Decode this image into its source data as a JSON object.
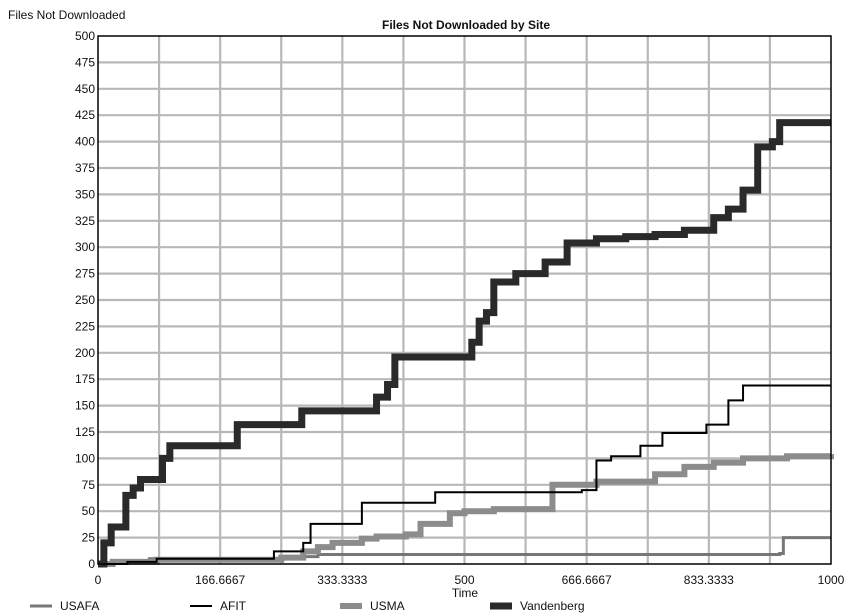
{
  "chart_data": {
    "type": "line",
    "title": "Files Not Downloaded by Site",
    "ylabel": "Files Not Downloaded",
    "xlabel": "Time",
    "xlim": [
      0,
      1000
    ],
    "ylim": [
      0,
      500
    ],
    "x_ticks": [
      0,
      166.6667,
      333.3333,
      500,
      666.6667,
      833.3333,
      1000
    ],
    "x_tick_labels": [
      "0",
      "166.6667",
      "333.3333",
      "500",
      "666.6667",
      "833.3333",
      "1000"
    ],
    "x_grid_step": 83.3333,
    "y_ticks": [
      0,
      25,
      50,
      75,
      100,
      125,
      150,
      175,
      200,
      225,
      250,
      275,
      300,
      325,
      350,
      375,
      400,
      425,
      450,
      475,
      500
    ],
    "grid": true,
    "legend_position": "bottom",
    "series": [
      {
        "name": "USAFA",
        "color": "#777777",
        "style": "medium-gray",
        "points": [
          [
            0,
            0
          ],
          [
            20,
            2
          ],
          [
            70,
            5
          ],
          [
            270,
            7
          ],
          [
            300,
            9
          ],
          [
            930,
            10
          ],
          [
            935,
            25
          ],
          [
            1000,
            25
          ]
        ]
      },
      {
        "name": "AFIT",
        "color": "#000000",
        "style": "thin-black",
        "points": [
          [
            0,
            0
          ],
          [
            40,
            2
          ],
          [
            80,
            5
          ],
          [
            240,
            12
          ],
          [
            280,
            20
          ],
          [
            290,
            38
          ],
          [
            360,
            58
          ],
          [
            460,
            68
          ],
          [
            660,
            70
          ],
          [
            680,
            98
          ],
          [
            700,
            102
          ],
          [
            740,
            112
          ],
          [
            770,
            124
          ],
          [
            830,
            132
          ],
          [
            860,
            155
          ],
          [
            880,
            169
          ],
          [
            1000,
            169
          ]
        ]
      },
      {
        "name": "USMA",
        "color": "#8c8c8c",
        "style": "thick-gray",
        "points": [
          [
            0,
            0
          ],
          [
            20,
            2
          ],
          [
            80,
            4
          ],
          [
            250,
            6
          ],
          [
            280,
            12
          ],
          [
            300,
            16
          ],
          [
            320,
            20
          ],
          [
            360,
            24
          ],
          [
            380,
            26
          ],
          [
            420,
            28
          ],
          [
            440,
            38
          ],
          [
            480,
            48
          ],
          [
            500,
            50
          ],
          [
            540,
            52
          ],
          [
            620,
            75
          ],
          [
            680,
            78
          ],
          [
            760,
            85
          ],
          [
            800,
            92
          ],
          [
            840,
            96
          ],
          [
            880,
            100
          ],
          [
            940,
            102
          ],
          [
            1000,
            104
          ]
        ]
      },
      {
        "name": "Vandenberg",
        "color": "#2a2a2a",
        "style": "thick-dark",
        "points": [
          [
            0,
            0
          ],
          [
            8,
            20
          ],
          [
            18,
            35
          ],
          [
            38,
            65
          ],
          [
            48,
            72
          ],
          [
            58,
            80
          ],
          [
            88,
            100
          ],
          [
            98,
            112
          ],
          [
            190,
            132
          ],
          [
            278,
            145
          ],
          [
            380,
            158
          ],
          [
            395,
            170
          ],
          [
            405,
            196
          ],
          [
            510,
            210
          ],
          [
            520,
            230
          ],
          [
            530,
            238
          ],
          [
            540,
            267
          ],
          [
            570,
            275
          ],
          [
            610,
            286
          ],
          [
            640,
            304
          ],
          [
            680,
            308
          ],
          [
            720,
            310
          ],
          [
            760,
            312
          ],
          [
            800,
            316
          ],
          [
            840,
            328
          ],
          [
            860,
            336
          ],
          [
            880,
            354
          ],
          [
            900,
            395
          ],
          [
            920,
            400
          ],
          [
            930,
            418
          ],
          [
            1000,
            418
          ]
        ]
      }
    ]
  }
}
